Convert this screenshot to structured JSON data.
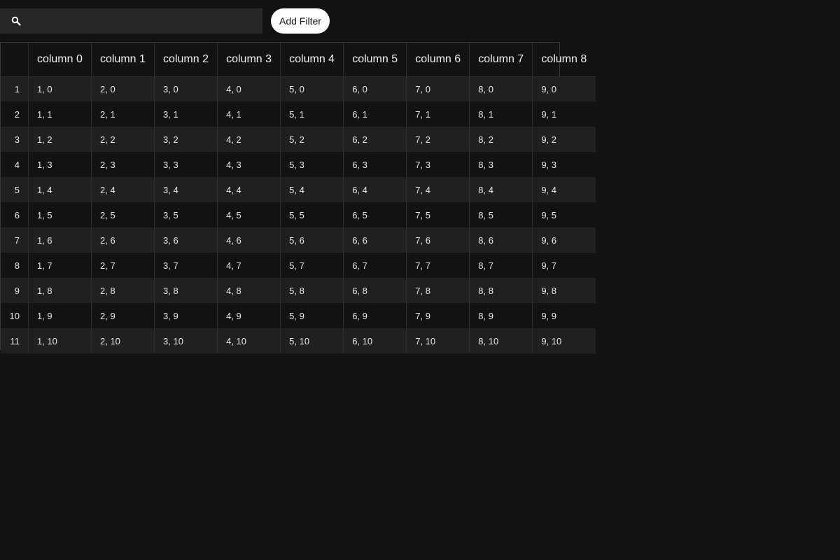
{
  "search": {
    "placeholder": "",
    "value": ""
  },
  "toolbar": {
    "add_filter_label": "Add Filter"
  },
  "table": {
    "columns": [
      "column 0",
      "column 1",
      "column 2",
      "column 3",
      "column 4",
      "column 5",
      "column 6",
      "column 7",
      "column 8"
    ],
    "rows": [
      {
        "num": "1",
        "cells": [
          "1, 0",
          "2, 0",
          "3, 0",
          "4, 0",
          "5, 0",
          "6, 0",
          "7, 0",
          "8, 0",
          "9, 0"
        ]
      },
      {
        "num": "2",
        "cells": [
          "1, 1",
          "2, 1",
          "3, 1",
          "4, 1",
          "5, 1",
          "6, 1",
          "7, 1",
          "8, 1",
          "9, 1"
        ]
      },
      {
        "num": "3",
        "cells": [
          "1, 2",
          "2, 2",
          "3, 2",
          "4, 2",
          "5, 2",
          "6, 2",
          "7, 2",
          "8, 2",
          "9, 2"
        ]
      },
      {
        "num": "4",
        "cells": [
          "1, 3",
          "2, 3",
          "3, 3",
          "4, 3",
          "5, 3",
          "6, 3",
          "7, 3",
          "8, 3",
          "9, 3"
        ]
      },
      {
        "num": "5",
        "cells": [
          "1, 4",
          "2, 4",
          "3, 4",
          "4, 4",
          "5, 4",
          "6, 4",
          "7, 4",
          "8, 4",
          "9, 4"
        ]
      },
      {
        "num": "6",
        "cells": [
          "1, 5",
          "2, 5",
          "3, 5",
          "4, 5",
          "5, 5",
          "6, 5",
          "7, 5",
          "8, 5",
          "9, 5"
        ]
      },
      {
        "num": "7",
        "cells": [
          "1, 6",
          "2, 6",
          "3, 6",
          "4, 6",
          "5, 6",
          "6, 6",
          "7, 6",
          "8, 6",
          "9, 6"
        ]
      },
      {
        "num": "8",
        "cells": [
          "1, 7",
          "2, 7",
          "3, 7",
          "4, 7",
          "5, 7",
          "6, 7",
          "7, 7",
          "8, 7",
          "9, 7"
        ]
      },
      {
        "num": "9",
        "cells": [
          "1, 8",
          "2, 8",
          "3, 8",
          "4, 8",
          "5, 8",
          "6, 8",
          "7, 8",
          "8, 8",
          "9, 8"
        ]
      },
      {
        "num": "10",
        "cells": [
          "1, 9",
          "2, 9",
          "3, 9",
          "4, 9",
          "5, 9",
          "6, 9",
          "7, 9",
          "8, 9",
          "9, 9"
        ]
      },
      {
        "num": "11",
        "cells": [
          "1, 10",
          "2, 10",
          "3, 10",
          "4, 10",
          "5, 10",
          "6, 10",
          "7, 10",
          "8, 10",
          "9, 10"
        ]
      }
    ]
  },
  "icons": {
    "search": "search-icon"
  },
  "colors": {
    "background": "#121212",
    "search_bg": "#272727",
    "row_alt": "#202020",
    "button_bg": "#ffffff"
  }
}
